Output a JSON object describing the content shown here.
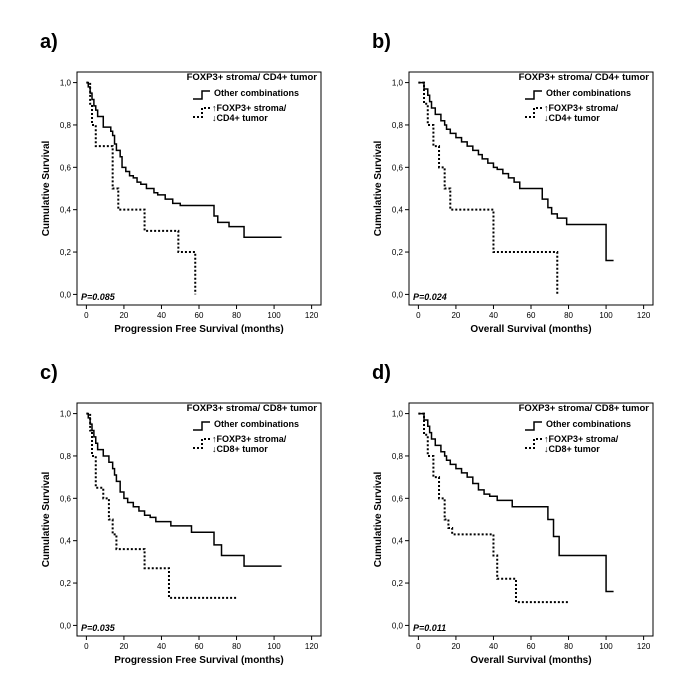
{
  "figure": {
    "legend_series": {
      "solid": "Other combinations",
      "dashed_line1": "↑FOXP3+ stroma/"
    },
    "colors": {
      "line": "#000000",
      "frame": "#000000",
      "background": "#ffffff"
    }
  },
  "chart_data": [
    {
      "panel": "a)",
      "type": "line",
      "style": "kaplan-meier step",
      "legend_title": "FOXP3+ stroma/ CD4+ tumor",
      "legend_line2": "↓CD4+ tumor",
      "xlabel": "Progression Free Survival (months)",
      "ylabel": "Cumulative Survival",
      "xlim": [
        -5,
        125
      ],
      "ylim": [
        -0.05,
        1.05
      ],
      "x_ticks": [
        "0",
        "20",
        "40",
        "60",
        "80",
        "100",
        "120"
      ],
      "y_ticks": [
        "0,0",
        "0,2",
        "0,4",
        "0,6",
        "0,8",
        "1,0"
      ],
      "p_value": "P=0.085",
      "series": [
        {
          "name": "Other combinations",
          "style": "solid",
          "x": [
            0,
            1,
            2,
            3,
            4,
            5,
            6,
            9,
            13,
            14,
            15,
            16,
            18,
            19,
            21,
            23,
            25,
            27,
            29,
            32,
            36,
            38,
            42,
            46,
            50,
            57,
            62,
            68,
            70,
            76,
            84,
            104
          ],
          "y": [
            1.0,
            0.98,
            0.95,
            0.92,
            0.89,
            0.87,
            0.84,
            0.79,
            0.77,
            0.75,
            0.71,
            0.68,
            0.65,
            0.6,
            0.58,
            0.56,
            0.55,
            0.53,
            0.52,
            0.5,
            0.48,
            0.47,
            0.45,
            0.43,
            0.42,
            0.42,
            0.42,
            0.37,
            0.34,
            0.32,
            0.27,
            0.27
          ]
        },
        {
          "name": "↑FOXP3+ stroma/ ↓CD4+ tumor",
          "style": "dashed",
          "x": [
            0,
            2,
            3,
            5,
            14,
            17,
            31,
            49,
            58,
            58
          ],
          "y": [
            1.0,
            0.9,
            0.8,
            0.7,
            0.5,
            0.4,
            0.3,
            0.2,
            0.2,
            0.0
          ]
        }
      ]
    },
    {
      "panel": "b)",
      "type": "line",
      "style": "kaplan-meier step",
      "legend_title": "FOXP3+ stroma/ CD4+ tumor",
      "legend_line2": "↓CD4+ tumor",
      "xlabel": "Overall Survival (months)",
      "ylabel": "Cumulative Survival",
      "xlim": [
        -5,
        125
      ],
      "ylim": [
        -0.05,
        1.05
      ],
      "x_ticks": [
        "0",
        "20",
        "40",
        "60",
        "80",
        "100",
        "120"
      ],
      "y_ticks": [
        "0,0",
        "0,2",
        "0,4",
        "0,6",
        "0,8",
        "1,0"
      ],
      "p_value": "P=0.024",
      "series": [
        {
          "name": "Other combinations",
          "style": "solid",
          "x": [
            0,
            3,
            5,
            6,
            7,
            9,
            12,
            14,
            15,
            17,
            20,
            23,
            26,
            29,
            32,
            34,
            37,
            40,
            42,
            45,
            48,
            51,
            54,
            58,
            62,
            66,
            69,
            71,
            74,
            79,
            100,
            104
          ],
          "y": [
            1.0,
            0.97,
            0.94,
            0.91,
            0.88,
            0.85,
            0.82,
            0.8,
            0.78,
            0.76,
            0.74,
            0.72,
            0.7,
            0.68,
            0.66,
            0.64,
            0.62,
            0.6,
            0.59,
            0.57,
            0.55,
            0.53,
            0.5,
            0.5,
            0.5,
            0.45,
            0.41,
            0.38,
            0.36,
            0.33,
            0.16,
            0.16
          ]
        },
        {
          "name": "↑FOXP3+ stroma/ ↓CD4+ tumor",
          "style": "dashed",
          "x": [
            0,
            3,
            5,
            8,
            11,
            14,
            17,
            40,
            63,
            74,
            74
          ],
          "y": [
            1.0,
            0.9,
            0.8,
            0.7,
            0.6,
            0.5,
            0.4,
            0.2,
            0.2,
            0.2,
            0.0
          ]
        }
      ]
    },
    {
      "panel": "c)",
      "type": "line",
      "style": "kaplan-meier step",
      "legend_title": "FOXP3+ stroma/ CD8+ tumor",
      "legend_line2": "↓CD8+ tumor",
      "xlabel": "Progression Free Survival (months)",
      "ylabel": "Cumulative Survival",
      "xlim": [
        -5,
        125
      ],
      "ylim": [
        -0.05,
        1.05
      ],
      "x_ticks": [
        "0",
        "20",
        "40",
        "60",
        "80",
        "100",
        "120"
      ],
      "y_ticks": [
        "0,0",
        "0,2",
        "0,4",
        "0,6",
        "0,8",
        "1,0"
      ],
      "p_value": "P=0.035",
      "series": [
        {
          "name": "Other combinations",
          "style": "solid",
          "x": [
            0,
            1,
            2,
            3,
            4,
            5,
            6,
            9,
            12,
            14,
            15,
            16,
            18,
            20,
            22,
            25,
            28,
            31,
            34,
            37,
            45,
            56,
            68,
            72,
            84,
            104
          ],
          "y": [
            1.0,
            0.98,
            0.95,
            0.92,
            0.89,
            0.86,
            0.83,
            0.8,
            0.77,
            0.74,
            0.71,
            0.68,
            0.63,
            0.6,
            0.58,
            0.56,
            0.54,
            0.52,
            0.51,
            0.49,
            0.47,
            0.44,
            0.38,
            0.33,
            0.28,
            0.28
          ]
        },
        {
          "name": "↑FOXP3+ stroma/ ↓CD8+ tumor",
          "style": "dashed",
          "x": [
            0,
            2,
            3,
            5,
            9,
            12,
            14,
            16,
            31,
            44,
            80
          ],
          "y": [
            1.0,
            0.92,
            0.8,
            0.65,
            0.6,
            0.5,
            0.43,
            0.36,
            0.27,
            0.13,
            0.13
          ]
        }
      ]
    },
    {
      "panel": "d)",
      "type": "line",
      "style": "kaplan-meier step",
      "legend_title": "FOXP3+ stroma/ CD8+ tumor",
      "legend_line2": "↓CD8+ tumor",
      "xlabel": "Overall Survival (months)",
      "ylabel": "Cumulative Survival",
      "xlim": [
        -5,
        125
      ],
      "ylim": [
        -0.05,
        1.05
      ],
      "x_ticks": [
        "0",
        "20",
        "40",
        "60",
        "80",
        "100",
        "120"
      ],
      "y_ticks": [
        "0,0",
        "0,2",
        "0,4",
        "0,6",
        "0,8",
        "1,0"
      ],
      "p_value": "P=0.011",
      "series": [
        {
          "name": "Other combinations",
          "style": "solid",
          "x": [
            0,
            3,
            5,
            6,
            7,
            9,
            12,
            14,
            15,
            17,
            20,
            23,
            26,
            29,
            32,
            35,
            38,
            42,
            50,
            57,
            69,
            72,
            75,
            100,
            104
          ],
          "y": [
            1.0,
            0.97,
            0.94,
            0.91,
            0.88,
            0.85,
            0.82,
            0.8,
            0.78,
            0.76,
            0.74,
            0.72,
            0.7,
            0.67,
            0.64,
            0.62,
            0.61,
            0.59,
            0.56,
            0.56,
            0.5,
            0.42,
            0.33,
            0.16,
            0.16
          ]
        },
        {
          "name": "↑FOXP3+ stroma/ ↓CD8+ tumor",
          "style": "dashed",
          "x": [
            0,
            3,
            5,
            8,
            11,
            14,
            16,
            18,
            40,
            42,
            52,
            80
          ],
          "y": [
            1.0,
            0.9,
            0.8,
            0.7,
            0.6,
            0.5,
            0.46,
            0.43,
            0.33,
            0.22,
            0.11,
            0.11
          ]
        }
      ]
    }
  ]
}
